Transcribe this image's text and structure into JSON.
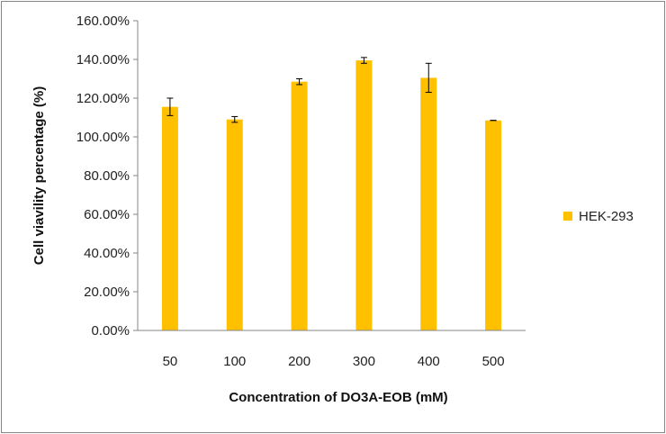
{
  "chart_data": {
    "type": "bar",
    "categories": [
      "50",
      "100",
      "200",
      "300",
      "400",
      "500"
    ],
    "series": [
      {
        "name": "HEK-293",
        "values": [
          115.5,
          109,
          128.5,
          139.5,
          130.5,
          108.5
        ],
        "error": [
          4.5,
          1.5,
          1.5,
          1.5,
          7.5,
          0
        ]
      }
    ],
    "ytick_labels": [
      "0.00%",
      "20.00%",
      "40.00%",
      "60.00%",
      "80.00%",
      "100.00%",
      "120.00%",
      "140.00%",
      "160.00%"
    ],
    "ylim": [
      0,
      160
    ],
    "xlabel": "Concentration of DO3A-EOB (mM)",
    "ylabel": "Cell viavility percentage (%)",
    "grid": false,
    "legend_position": "right",
    "colors": {
      "bar": "#FFC000",
      "axis": "#868686",
      "error": "#000000"
    }
  }
}
